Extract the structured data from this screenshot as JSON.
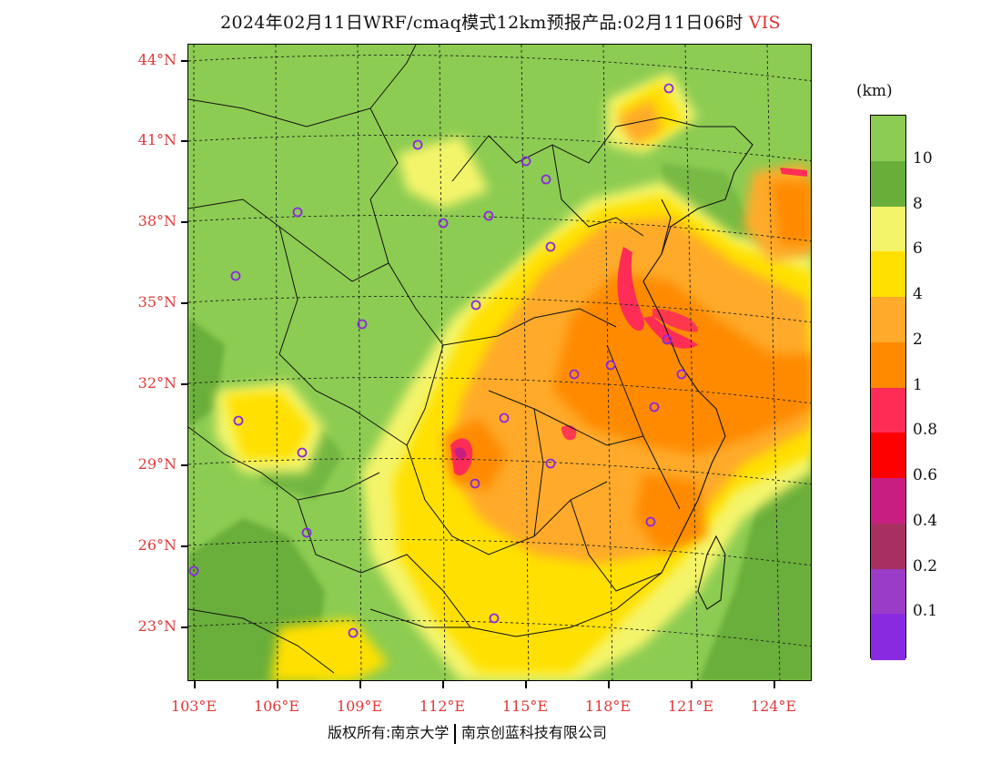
{
  "title": {
    "text": "2024年02月11日WRF/cmaq模式12km预报产品:02月11日06时",
    "variable": "VIS"
  },
  "credit": {
    "left": "版权所有:南京大学",
    "right": "南京创蓝科技有限公司"
  },
  "legend": {
    "unit": "(km)",
    "labels": [
      "10",
      "8",
      "6",
      "4",
      "2",
      "1",
      "0.8",
      "0.6",
      "0.4",
      "0.2",
      "0.1"
    ],
    "colors": [
      "#8ccc52",
      "#6aae3a",
      "#f4f46a",
      "#ffe000",
      "#ffaa2a",
      "#ff8a00",
      "#ff2d55",
      "#ff0000",
      "#c81e82",
      "#a83060",
      "#9a3cc8",
      "#8a2ae0"
    ]
  },
  "axes": {
    "lat_labels": [
      "44°N",
      "41°N",
      "38°N",
      "35°N",
      "32°N",
      "29°N",
      "26°N",
      "23°N"
    ],
    "lon_labels": [
      "103°E",
      "106°E",
      "109°E",
      "112°E",
      "115°E",
      "118°E",
      "121°E",
      "124°E"
    ]
  },
  "colors": {
    "label_red": "#e03838",
    "marker": "#8a2ae0"
  }
}
